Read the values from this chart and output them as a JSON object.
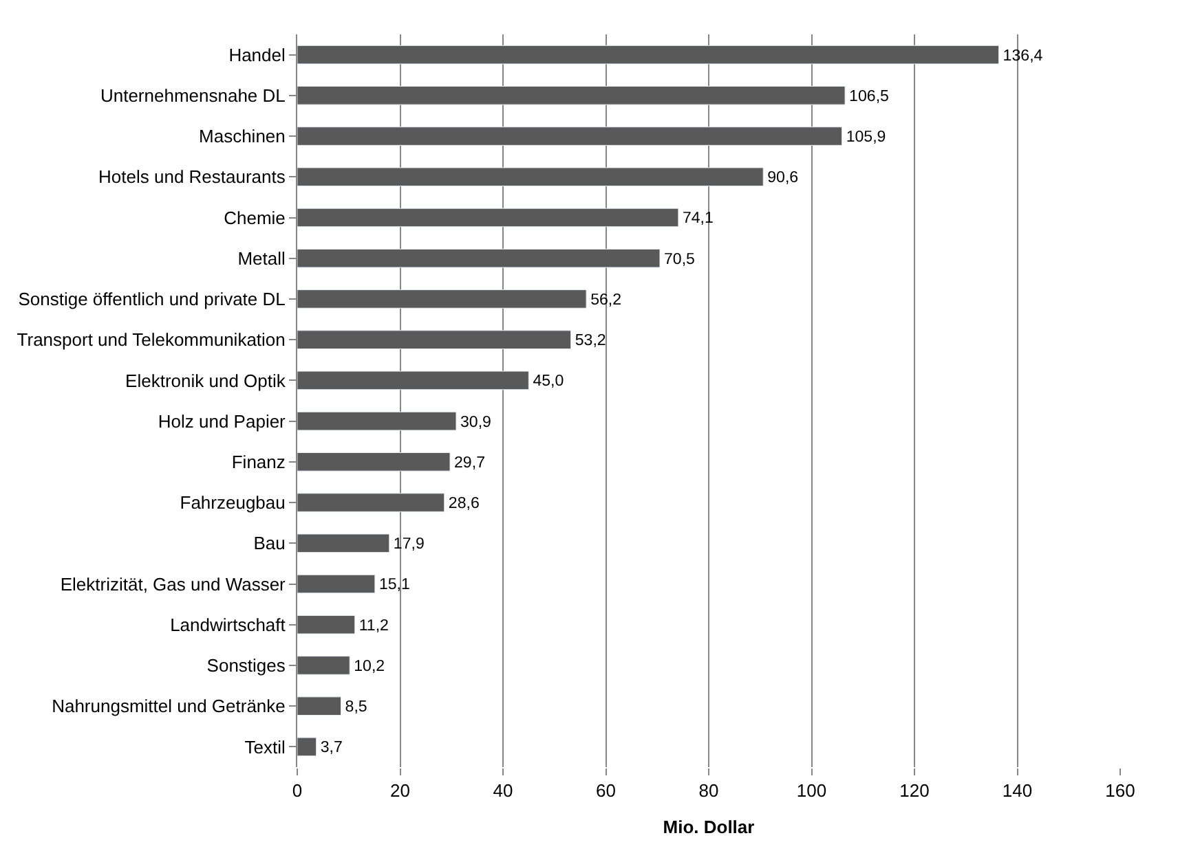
{
  "chart_data": {
    "type": "bar",
    "orientation": "horizontal",
    "xlabel": "Mio. Dollar",
    "categories": [
      "Handel",
      "Unternehmensnahe DL",
      "Maschinen",
      "Hotels und Restaurants",
      "Chemie",
      "Metall",
      "Sonstige öffentlich und private DL",
      "Transport und Telekommunikation",
      "Elektronik und Optik",
      "Holz und Papier",
      "Finanz",
      "Fahrzeugbau",
      "Bau",
      "Elektrizität, Gas und Wasser",
      "Landwirtschaft",
      "Sonstiges",
      "Nahrungsmittel und Getränke",
      "Textil"
    ],
    "values": [
      136.4,
      106.5,
      105.9,
      90.6,
      74.1,
      70.5,
      56.2,
      53.2,
      45.0,
      30.9,
      29.7,
      28.6,
      17.9,
      15.1,
      11.2,
      10.2,
      8.5,
      3.7
    ],
    "value_labels": [
      "136,4",
      "106,5",
      "105,9",
      "90,6",
      "74,1",
      "70,5",
      "56,2",
      "53,2",
      "45,0",
      "30,9",
      "29,7",
      "28,6",
      "17,9",
      "15,1",
      "11,2",
      "10,2",
      "8,5",
      "3,7"
    ],
    "color": "#595959",
    "xlim": [
      0,
      160
    ],
    "xticks": [
      0,
      20,
      40,
      60,
      80,
      100,
      120,
      140,
      160
    ],
    "grid": "x",
    "legend": false
  }
}
